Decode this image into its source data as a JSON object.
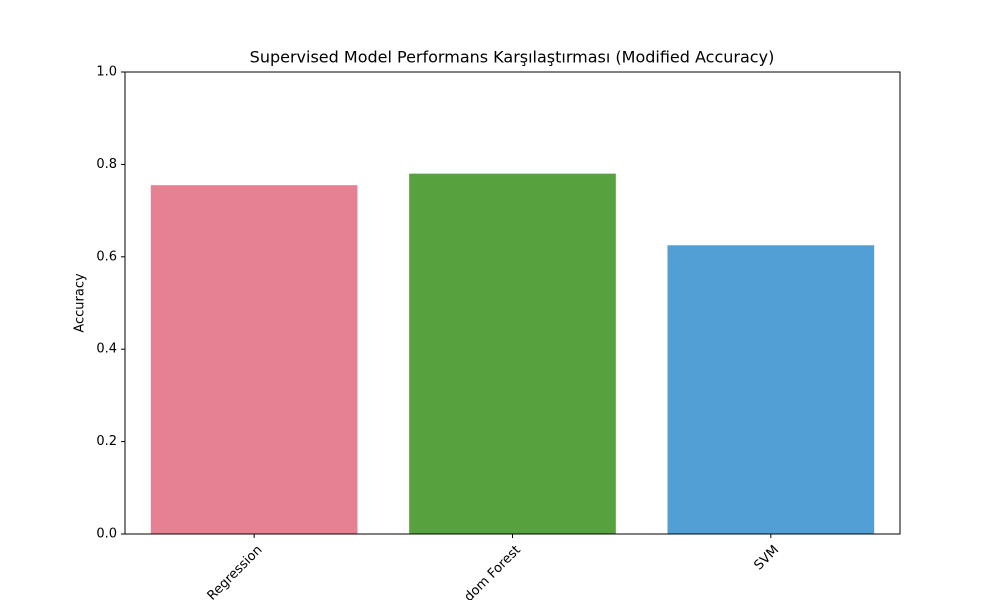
{
  "chart_data": {
    "type": "bar",
    "title": "Supervised Model Performans Karşılaştırması (Modified Accuracy)",
    "y_label": "Accuracy",
    "categories": [
      "Regression",
      "dom Forest",
      "SVM"
    ],
    "values": [
      0.755,
      0.78,
      0.625
    ],
    "colors": [
      "#e68193",
      "#58a13f",
      "#529fd6"
    ],
    "ylim": [
      0,
      1
    ],
    "yticks": [
      {
        "value": 0,
        "label": "0.0"
      },
      0.2,
      0.4,
      0.6,
      0.8,
      {
        "value": 1,
        "label": "1.0"
      }
    ],
    "grid": false
  }
}
